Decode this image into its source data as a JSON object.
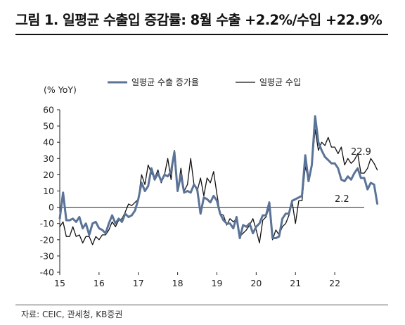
{
  "title": "그림 1. 일평균 수출입 증감률: 8월 수출 +2.2%/수입 +22.9%",
  "source": "자료: CEIC, 관세청, KB증권",
  "chart_data": {
    "type": "line",
    "ylabel": "(% YoY)",
    "ylim": [
      -40,
      60
    ],
    "yticks": [
      -40,
      -30,
      -20,
      -10,
      0,
      10,
      20,
      30,
      40,
      50,
      60
    ],
    "xlim": [
      2015.0,
      2022.75
    ],
    "xticks": [
      {
        "value": 2015,
        "label": "15"
      },
      {
        "value": 2016,
        "label": "16"
      },
      {
        "value": 2017,
        "label": "17"
      },
      {
        "value": 2018,
        "label": "18"
      },
      {
        "value": 2019,
        "label": "19"
      },
      {
        "value": 2020,
        "label": "20"
      },
      {
        "value": 2021,
        "label": "21"
      },
      {
        "value": 2022,
        "label": "22"
      }
    ],
    "x_start": "2015-01",
    "frequency": "monthly",
    "grid": false,
    "legend_position": "top",
    "series": [
      {
        "name": "일평균 수출 증가율",
        "color": "#5b7397",
        "values": [
          -7,
          9,
          -8,
          -8,
          -7,
          -9,
          -6,
          -13,
          -10,
          -17,
          -10,
          -9,
          -13,
          -14,
          -16,
          -10,
          -5,
          -10,
          -7,
          -9,
          -4,
          -6,
          -5,
          -2,
          5,
          15,
          10,
          13,
          24,
          17,
          21,
          16,
          20,
          19,
          22,
          34,
          10,
          20,
          9,
          10,
          9,
          14,
          11,
          -4,
          6,
          5,
          3,
          7,
          4,
          -4,
          -8,
          -10,
          -10,
          -13,
          -6,
          -19,
          -11,
          -12,
          -10,
          -16,
          -12,
          -10,
          -5,
          -5,
          3,
          -19,
          -19,
          -18,
          -7,
          -4,
          -4,
          4,
          5,
          6,
          7,
          32,
          16,
          26,
          56,
          40,
          35,
          31,
          29,
          27,
          27,
          24,
          17,
          16,
          19,
          17,
          21,
          24,
          18,
          18,
          11,
          15,
          14,
          2.2
        ],
        "width": 3
      },
      {
        "name": "일평균 수입",
        "color": "#111111",
        "values": [
          -12,
          -9,
          -18,
          -18,
          -12,
          -18,
          -17,
          -22,
          -18,
          -18,
          -23,
          -18,
          -20,
          -17,
          -17,
          -14,
          -9,
          -12,
          -8,
          -7,
          -3,
          2,
          1,
          3,
          5,
          20,
          14,
          26,
          21,
          18,
          23,
          15,
          20,
          30,
          17,
          35,
          10,
          24,
          10,
          14,
          30,
          14,
          10,
          18,
          7,
          18,
          15,
          22,
          8,
          -4,
          -5,
          -11,
          -7,
          -9,
          -7,
          -18,
          -16,
          -14,
          -11,
          -7,
          -14,
          -22,
          -8,
          -6,
          0,
          -20,
          -14,
          -17,
          -12,
          -10,
          -5,
          3,
          -10,
          4,
          4,
          25,
          17,
          25,
          48,
          35,
          40,
          38,
          43,
          37,
          37,
          33,
          37,
          26,
          30,
          27,
          29,
          33,
          21,
          21,
          24,
          30,
          27,
          22.9
        ],
        "width": 1.3
      }
    ],
    "annotations": [
      "22.9",
      "2.2"
    ]
  }
}
